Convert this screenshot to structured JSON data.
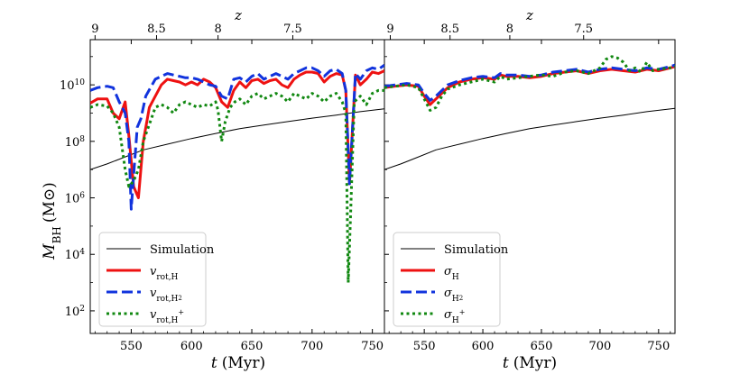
{
  "figure": {
    "ylabel": "M_BH (M⊙)",
    "ylabel_main": "M",
    "ylabel_sub": "BH",
    "ylabel_unit": "(M⊙)"
  },
  "chart_data": [
    {
      "type": "line",
      "panel": "left",
      "xlabel": "t (Myr)",
      "xlabel_main": "t",
      "xlabel_unit": "(Myr)",
      "top_axis_label": "z",
      "xlim": [
        516,
        760
      ],
      "ylim_log10": [
        1.2,
        11.6
      ],
      "y_scale": "log",
      "xticks": [
        550,
        600,
        650,
        700,
        750
      ],
      "xtick_labels": [
        "550",
        "600",
        "650",
        "700",
        "750"
      ],
      "yticks_log10": [
        2,
        4,
        6,
        8,
        10
      ],
      "ytick_bases": [
        "10",
        "10",
        "10",
        "10",
        "10"
      ],
      "ytick_exps": [
        "2",
        "4",
        "6",
        "8",
        "10"
      ],
      "top_ticks_t": [
        520,
        571,
        622,
        684
      ],
      "top_tick_labels": [
        "9",
        "8.5",
        "8",
        "7.5"
      ],
      "legend_position": "lower-left",
      "series": [
        {
          "name": "Simulation",
          "label_main": "Simulation",
          "label_sub": "",
          "label_sup": "",
          "color": "#000000",
          "style": "solid",
          "width": 1,
          "x": [
            516,
            530,
            545,
            560,
            580,
            600,
            620,
            640,
            660,
            680,
            700,
            720,
            740,
            760
          ],
          "y_log10": [
            7.0,
            7.2,
            7.45,
            7.7,
            7.9,
            8.1,
            8.28,
            8.45,
            8.58,
            8.7,
            8.82,
            8.93,
            9.05,
            9.15
          ]
        },
        {
          "name": "v_rot,H",
          "label_main": "v",
          "label_sub": "rot,H",
          "label_sup": "",
          "color": "#ee1111",
          "style": "solid",
          "width": 3,
          "x": [
            516,
            522,
            530,
            535,
            540,
            545,
            548,
            552,
            556,
            560,
            565,
            570,
            575,
            580,
            585,
            590,
            595,
            600,
            605,
            610,
            615,
            620,
            625,
            630,
            635,
            640,
            645,
            650,
            655,
            660,
            665,
            670,
            675,
            680,
            685,
            690,
            695,
            700,
            705,
            710,
            715,
            720,
            725,
            728,
            731,
            733,
            736,
            740,
            745,
            750,
            755,
            760
          ],
          "y_log10": [
            9.35,
            9.5,
            9.5,
            9.0,
            8.8,
            9.4,
            8.2,
            6.4,
            6.0,
            8.0,
            9.2,
            9.6,
            10.0,
            10.2,
            10.15,
            10.1,
            10.0,
            10.1,
            10.0,
            10.2,
            10.1,
            9.9,
            9.4,
            9.2,
            9.8,
            10.1,
            9.9,
            10.15,
            10.2,
            10.05,
            10.15,
            10.2,
            10.0,
            9.9,
            10.2,
            10.35,
            10.45,
            10.45,
            10.4,
            10.1,
            10.3,
            10.4,
            10.35,
            9.8,
            6.5,
            8.0,
            10.35,
            10.0,
            10.2,
            10.45,
            10.4,
            10.5
          ]
        },
        {
          "name": "v_rot,H2",
          "label_main": "v",
          "label_sub": "rot,H",
          "label_sup": "",
          "label_subsub": "2",
          "color": "#1133dd",
          "style": "dashed",
          "width": 3,
          "x": [
            516,
            522,
            530,
            535,
            540,
            545,
            548,
            550,
            552,
            555,
            558,
            562,
            566,
            570,
            575,
            580,
            585,
            590,
            595,
            600,
            605,
            610,
            615,
            620,
            625,
            630,
            635,
            640,
            645,
            650,
            655,
            660,
            665,
            670,
            675,
            680,
            685,
            690,
            695,
            700,
            705,
            710,
            715,
            720,
            725,
            728,
            731,
            733,
            736,
            740,
            745,
            750,
            755,
            760
          ],
          "y_log10": [
            9.8,
            9.9,
            9.95,
            9.9,
            9.4,
            9.0,
            8.0,
            5.6,
            6.8,
            8.5,
            8.8,
            9.6,
            9.9,
            10.2,
            10.3,
            10.4,
            10.35,
            10.3,
            10.25,
            10.25,
            10.2,
            10.1,
            10.0,
            9.95,
            9.6,
            9.5,
            10.2,
            10.25,
            10.1,
            10.3,
            10.4,
            10.2,
            10.3,
            10.4,
            10.3,
            10.2,
            10.4,
            10.5,
            10.6,
            10.6,
            10.5,
            10.3,
            10.5,
            10.55,
            10.4,
            9.8,
            6.5,
            8.0,
            10.4,
            10.2,
            10.5,
            10.6,
            10.55,
            10.7
          ]
        },
        {
          "name": "v_rot,H+",
          "label_main": "v",
          "label_sub": "rot,H",
          "label_sup": "+",
          "color": "#118811",
          "style": "dotted",
          "width": 3,
          "x": [
            516,
            522,
            530,
            535,
            540,
            545,
            548,
            552,
            556,
            560,
            565,
            570,
            575,
            580,
            585,
            590,
            595,
            600,
            605,
            610,
            615,
            620,
            622,
            625,
            628,
            632,
            636,
            640,
            645,
            650,
            655,
            660,
            665,
            670,
            675,
            680,
            685,
            690,
            695,
            700,
            705,
            710,
            715,
            720,
            725,
            728,
            730,
            732,
            735,
            740,
            745,
            750,
            755,
            760
          ],
          "y_log10": [
            9.2,
            9.3,
            9.25,
            9.0,
            8.5,
            7.0,
            6.4,
            6.6,
            7.0,
            8.0,
            8.6,
            9.2,
            9.3,
            9.2,
            9.0,
            9.3,
            9.4,
            9.3,
            9.2,
            9.3,
            9.25,
            9.4,
            9.1,
            8.0,
            8.7,
            9.2,
            9.4,
            9.5,
            9.3,
            9.6,
            9.7,
            9.5,
            9.6,
            9.7,
            9.6,
            9.4,
            9.7,
            9.6,
            9.5,
            9.7,
            9.6,
            9.4,
            9.6,
            9.7,
            9.4,
            9.0,
            3.0,
            5.5,
            9.4,
            9.6,
            9.3,
            9.7,
            9.8,
            9.8
          ]
        }
      ]
    },
    {
      "type": "line",
      "panel": "right",
      "xlabel": "t (Myr)",
      "xlabel_main": "t",
      "xlabel_unit": "(Myr)",
      "top_axis_label": "z",
      "xlim": [
        516,
        764
      ],
      "ylim_log10": [
        1.2,
        11.6
      ],
      "y_scale": "log",
      "xticks": [
        550,
        600,
        650,
        700,
        750
      ],
      "xtick_labels": [
        "550",
        "600",
        "650",
        "700",
        "750"
      ],
      "top_ticks_t": [
        521,
        572,
        623,
        686
      ],
      "top_tick_labels": [
        "9",
        "8.5",
        "8",
        "7.5"
      ],
      "legend_position": "lower-left",
      "series": [
        {
          "name": "Simulation",
          "label_main": "Simulation",
          "label_sub": "",
          "label_sup": "",
          "color": "#000000",
          "style": "solid",
          "width": 1,
          "x": [
            516,
            530,
            545,
            560,
            580,
            600,
            620,
            640,
            660,
            680,
            700,
            720,
            740,
            764
          ],
          "y_log10": [
            7.0,
            7.2,
            7.45,
            7.7,
            7.9,
            8.1,
            8.28,
            8.45,
            8.58,
            8.7,
            8.82,
            8.93,
            9.05,
            9.17
          ]
        },
        {
          "name": "sigma_H",
          "label_main": "σ",
          "label_sub": "H",
          "label_sup": "",
          "color": "#ee1111",
          "style": "solid",
          "width": 3,
          "x": [
            516,
            525,
            535,
            545,
            550,
            555,
            560,
            565,
            570,
            580,
            590,
            600,
            610,
            615,
            620,
            630,
            640,
            650,
            660,
            670,
            680,
            690,
            700,
            710,
            720,
            730,
            740,
            750,
            760,
            764
          ],
          "y_log10": [
            9.9,
            9.95,
            10.0,
            9.95,
            9.6,
            9.3,
            9.5,
            9.7,
            9.9,
            10.1,
            10.2,
            10.25,
            10.2,
            10.35,
            10.3,
            10.3,
            10.25,
            10.3,
            10.4,
            10.45,
            10.5,
            10.4,
            10.5,
            10.55,
            10.5,
            10.45,
            10.55,
            10.5,
            10.6,
            10.65
          ]
        },
        {
          "name": "sigma_H2",
          "label_main": "σ",
          "label_sub": "H",
          "label_sup": "",
          "label_subsub": "2",
          "color": "#1133dd",
          "style": "dashed",
          "width": 3,
          "x": [
            516,
            525,
            535,
            545,
            550,
            555,
            560,
            565,
            570,
            580,
            590,
            600,
            610,
            615,
            620,
            630,
            640,
            650,
            660,
            670,
            680,
            690,
            700,
            710,
            720,
            730,
            740,
            750,
            760,
            764
          ],
          "y_log10": [
            9.95,
            10.0,
            10.05,
            10.0,
            9.7,
            9.45,
            9.6,
            9.8,
            10.0,
            10.15,
            10.25,
            10.3,
            10.25,
            10.4,
            10.35,
            10.35,
            10.3,
            10.35,
            10.45,
            10.5,
            10.55,
            10.45,
            10.55,
            10.6,
            10.55,
            10.5,
            10.6,
            10.55,
            10.65,
            10.7
          ]
        },
        {
          "name": "sigma_H+",
          "label_main": "σ",
          "label_sub": "H",
          "label_sup": "+",
          "color": "#118811",
          "style": "dotted",
          "width": 3,
          "x": [
            516,
            525,
            535,
            545,
            550,
            555,
            560,
            565,
            570,
            580,
            590,
            600,
            610,
            615,
            620,
            630,
            640,
            650,
            660,
            670,
            680,
            690,
            700,
            705,
            710,
            715,
            720,
            725,
            730,
            735,
            740,
            745,
            750,
            760,
            764
          ],
          "y_log10": [
            9.9,
            9.95,
            10.0,
            9.9,
            9.5,
            9.1,
            9.2,
            9.6,
            9.85,
            10.0,
            10.1,
            10.2,
            10.1,
            10.3,
            10.2,
            10.25,
            10.3,
            10.35,
            10.3,
            10.45,
            10.5,
            10.4,
            10.6,
            10.9,
            11.0,
            10.95,
            10.8,
            10.5,
            10.6,
            10.45,
            10.8,
            10.5,
            10.55,
            10.6,
            10.65
          ]
        }
      ]
    }
  ]
}
